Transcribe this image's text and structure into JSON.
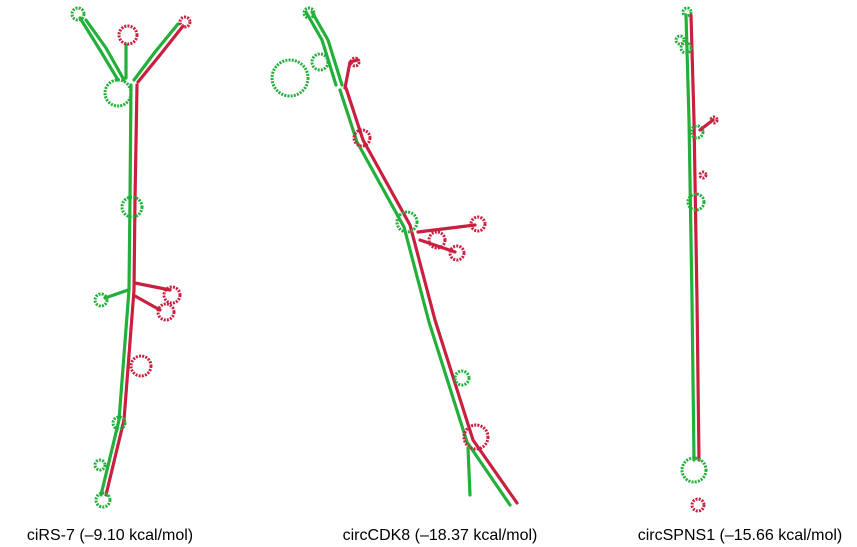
{
  "structures": [
    {
      "label": "ciRS-7 (–9.10 kcal/mol)"
    },
    {
      "label": "circCDK8 (–18.37 kcal/mol)"
    },
    {
      "label": "circSPNS1 (–15.66 kcal/mol)"
    }
  ]
}
